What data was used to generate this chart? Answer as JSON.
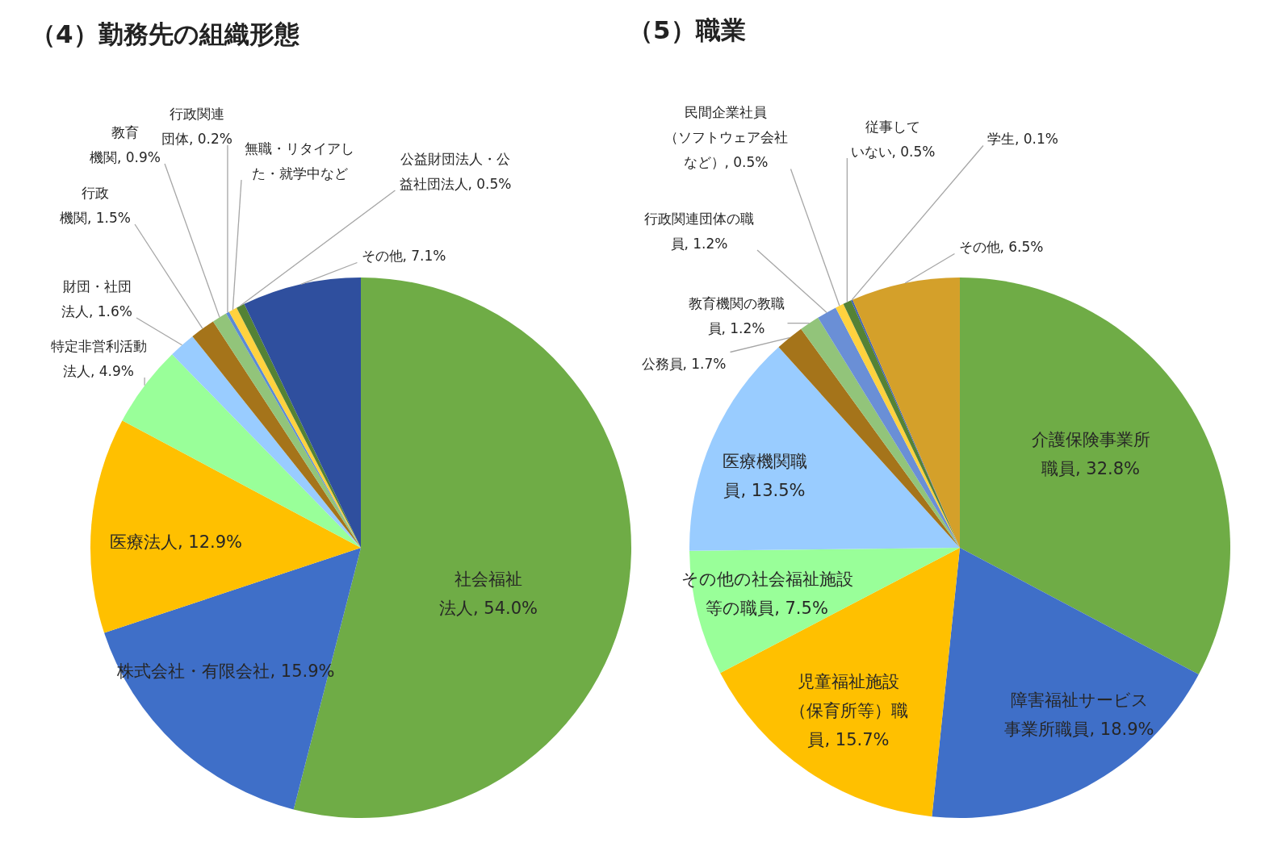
{
  "chart_data": [
    {
      "type": "pie",
      "title": "（4）勤務先の組織形態",
      "categories": [
        "社会福祉法人",
        "株式会社・有限会社",
        "医療法人",
        "特定非営利活動法人",
        "財団・社団法人",
        "行政機関",
        "教育機関",
        "行政関連団体",
        "無職・リタイアした・就学中など",
        "公益財団法人・公益社団法人",
        "その他"
      ],
      "values": [
        54.0,
        15.9,
        12.9,
        4.9,
        1.6,
        1.5,
        0.9,
        0.2,
        0.5,
        0.5,
        7.1
      ],
      "value_labels": [
        "54.0%",
        "15.9%",
        "12.9%",
        "4.9%",
        "1.6%",
        "1.5%",
        "0.9%",
        "0.2%",
        null,
        "0.5%",
        "7.1%"
      ],
      "colors": [
        "#6fac46",
        "#3f6fc8",
        "#ffc000",
        "#99ff99",
        "#99ccff",
        "#a5741a",
        "#92c47a",
        "#5b8bd6",
        "#ffd23f",
        "#548235",
        "#2f4f9e"
      ]
    },
    {
      "type": "pie",
      "title": "（5）職業",
      "categories": [
        "介護保険事業所職員",
        "障害福祉サービス事業所職員",
        "児童福祉施設（保育所等）職員",
        "その他の社会福祉施設等の職員",
        "医療機関職員",
        "公務員",
        "教育機関の教職員",
        "行政関連団体の職員",
        "民間企業社員（ソフトウェア会社など）",
        "従事していない",
        "学生",
        "その他"
      ],
      "values": [
        32.8,
        18.9,
        15.7,
        7.5,
        13.5,
        1.7,
        1.2,
        1.2,
        0.5,
        0.5,
        0.1,
        6.5
      ],
      "value_labels": [
        "32.8%",
        "18.9%",
        "15.7%",
        "7.5%",
        "13.5%",
        "1.7%",
        "1.2%",
        "1.2%",
        "0.5%",
        "0.5%",
        "0.1%",
        "6.5%"
      ],
      "colors": [
        "#6fac46",
        "#3f6fc8",
        "#ffc000",
        "#99ff99",
        "#99ccff",
        "#a5741a",
        "#92c47a",
        "#6a8fd6",
        "#ffd23f",
        "#548235",
        "#3b5fb3",
        "#d4a02a"
      ]
    }
  ]
}
